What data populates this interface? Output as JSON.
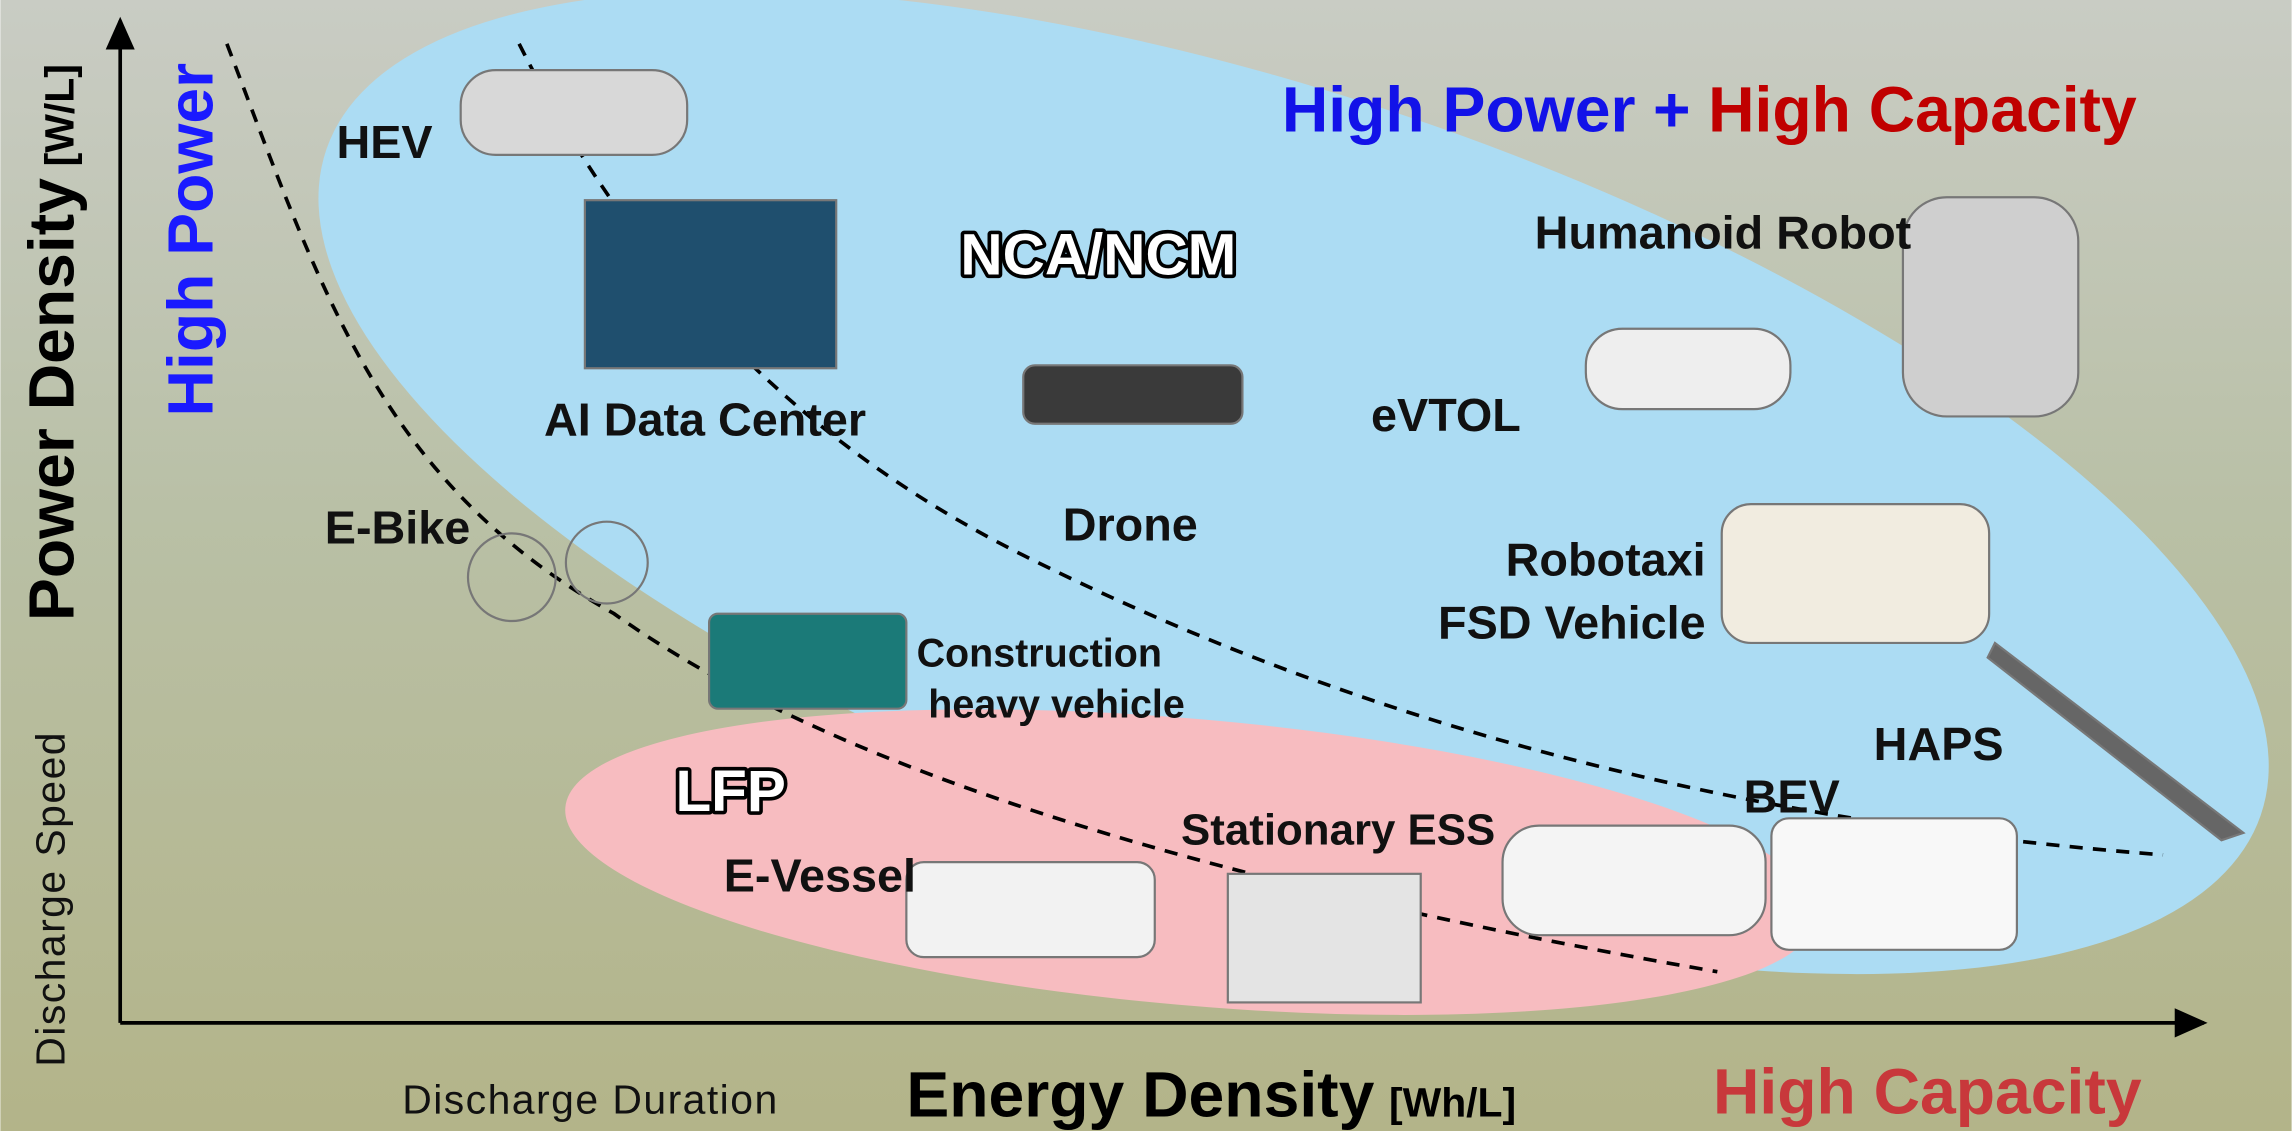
{
  "headline": {
    "left": "High Power",
    "joiner": "+",
    "right": "High Capacity"
  },
  "axes": {
    "y_label": "Power Density",
    "y_unit": "[W/L]",
    "y_end": "High Power",
    "y_sub": "Discharge Speed",
    "x_sub": "Discharge Duration",
    "x_label": "Energy Density",
    "x_unit": "[Wh/L]",
    "x_end": "High Capacity"
  },
  "regions": [
    {
      "label": "NCA/NCM"
    },
    {
      "label": "LFP"
    }
  ],
  "applications": [
    {
      "lines": [
        "HEV"
      ]
    },
    {
      "lines": [
        "AI Data Center"
      ]
    },
    {
      "lines": [
        "Humanoid Robot"
      ]
    },
    {
      "lines": [
        "eVTOL"
      ]
    },
    {
      "lines": [
        "Drone"
      ]
    },
    {
      "lines": [
        "E-Bike"
      ]
    },
    {
      "lines": [
        "Robotaxi",
        "FSD Vehicle"
      ]
    },
    {
      "lines": [
        "Construction",
        "heavy vehicle"
      ]
    },
    {
      "lines": [
        "HAPS"
      ]
    },
    {
      "lines": [
        "E-Vessel"
      ]
    },
    {
      "lines": [
        "Stationary ESS"
      ]
    },
    {
      "lines": [
        "BEV"
      ]
    }
  ]
}
